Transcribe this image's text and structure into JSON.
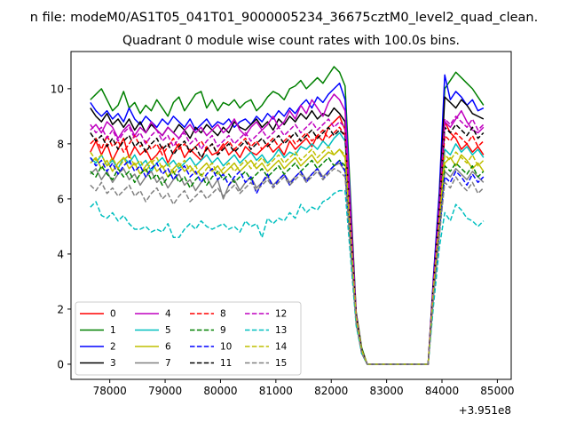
{
  "suptitle": "n file: modeM0/AS1T05_041T01_9000005234_36675cztM0_level2_quad_clean.",
  "chart_data": {
    "type": "line",
    "title": "Quadrant 0 module wise count rates with 100.0s bins.",
    "xlabel": "",
    "ylabel": "",
    "x_offset_label": "+3.951e8",
    "xlim": [
      77300,
      85250
    ],
    "ylim": [
      -0.55,
      11.35
    ],
    "x_ticks": [
      78000,
      79000,
      80000,
      81000,
      82000,
      83000,
      84000,
      85000
    ],
    "x_tick_labels": [
      "78000",
      "79000",
      "80000",
      "81000",
      "82000",
      "83000",
      "84000",
      "85000"
    ],
    "y_ticks": [
      0,
      2,
      4,
      6,
      8,
      10
    ],
    "y_tick_labels": [
      "0",
      "2",
      "4",
      "6",
      "8",
      "10"
    ],
    "grid": false,
    "legend": {
      "placement": "lower-left",
      "columns": 4
    },
    "segments": [
      {
        "x_start": 77650,
        "x_step": 100,
        "count": 47
      },
      {
        "x_start": 82450,
        "x_step": 100,
        "count": 14
      },
      {
        "x_start": 83850,
        "x_step": 100,
        "count": 10
      }
    ],
    "series": [
      {
        "name": "0",
        "color": "#ff0000",
        "dash": "solid",
        "values": [
          7.7,
          8.1,
          7.6,
          8.0,
          7.4,
          7.8,
          8.2,
          7.5,
          7.9,
          7.6,
          7.8,
          7.4,
          7.6,
          7.9,
          7.3,
          7.7,
          8.0,
          7.5,
          7.8,
          7.6,
          7.4,
          7.9,
          7.6,
          7.7,
          8.0,
          7.6,
          7.8,
          7.5,
          7.9,
          7.7,
          7.6,
          7.8,
          8.0,
          7.7,
          7.9,
          7.6,
          8.1,
          7.8,
          8.0,
          8.2,
          7.9,
          8.3,
          8.1,
          8.6,
          8.8,
          9.0,
          8.5,
          1.8,
          0.5,
          0,
          0,
          0,
          0,
          0,
          0,
          0,
          0,
          0,
          0,
          0,
          0,
          3.0,
          5.5,
          8.8,
          8.4,
          8.2,
          7.8,
          8.0,
          7.7,
          7.9,
          7.6
        ]
      },
      {
        "name": "1",
        "color": "#008000",
        "dash": "solid",
        "values": [
          9.6,
          9.8,
          10.0,
          9.6,
          9.2,
          9.4,
          9.9,
          9.3,
          9.5,
          9.1,
          9.4,
          9.2,
          9.6,
          9.3,
          9.0,
          9.5,
          9.7,
          9.2,
          9.5,
          9.8,
          9.9,
          9.3,
          9.6,
          9.2,
          9.5,
          9.4,
          9.6,
          9.3,
          9.5,
          9.6,
          9.2,
          9.4,
          9.7,
          9.9,
          9.8,
          9.6,
          10.0,
          10.1,
          10.3,
          10.0,
          10.2,
          10.4,
          10.2,
          10.5,
          10.8,
          10.6,
          10.1,
          1.9,
          0.6,
          0,
          0,
          0,
          0,
          0,
          0,
          0,
          0,
          0,
          0,
          0,
          0,
          3.2,
          6.0,
          10.0,
          10.3,
          10.6,
          10.4,
          10.2,
          10.0,
          9.7,
          9.4
        ]
      },
      {
        "name": "2",
        "color": "#0000ff",
        "dash": "solid",
        "values": [
          9.5,
          9.2,
          9.0,
          9.2,
          8.9,
          9.1,
          8.8,
          9.3,
          8.9,
          8.7,
          9.0,
          8.8,
          8.6,
          8.9,
          8.7,
          9.0,
          8.8,
          8.6,
          8.9,
          8.5,
          8.7,
          8.9,
          8.6,
          8.8,
          8.7,
          8.9,
          8.6,
          8.8,
          8.9,
          8.7,
          9.0,
          8.8,
          9.1,
          8.9,
          9.2,
          9.0,
          9.3,
          9.1,
          9.4,
          9.6,
          9.3,
          9.7,
          9.5,
          9.8,
          10.0,
          10.2,
          9.6,
          1.8,
          0.5,
          0,
          0,
          0,
          0,
          0,
          0,
          0,
          0,
          0,
          0,
          0,
          0,
          3.3,
          6.2,
          10.5,
          9.6,
          9.9,
          9.7,
          9.4,
          9.6,
          9.2,
          9.3
        ]
      },
      {
        "name": "3",
        "color": "#000000",
        "dash": "solid",
        "values": [
          9.3,
          9.0,
          8.8,
          9.1,
          8.7,
          8.9,
          8.6,
          8.9,
          8.5,
          8.8,
          8.4,
          8.7,
          8.5,
          8.3,
          8.6,
          8.4,
          8.7,
          8.5,
          8.2,
          8.6,
          8.4,
          8.7,
          8.5,
          8.3,
          8.6,
          8.4,
          8.8,
          8.6,
          8.5,
          8.7,
          8.9,
          8.6,
          8.8,
          8.5,
          8.9,
          8.7,
          9.0,
          8.8,
          9.1,
          8.9,
          9.2,
          8.9,
          9.1,
          9.0,
          9.3,
          9.1,
          8.8,
          1.7,
          0.5,
          0,
          0,
          0,
          0,
          0,
          0,
          0,
          0,
          0,
          0,
          0,
          0,
          3.1,
          5.8,
          9.7,
          9.5,
          9.3,
          9.6,
          9.4,
          9.1,
          9.0,
          8.9
        ]
      },
      {
        "name": "4",
        "color": "#bf00bf",
        "dash": "solid",
        "values": [
          8.5,
          8.7,
          8.4,
          8.8,
          8.6,
          8.2,
          8.5,
          8.7,
          8.3,
          8.6,
          8.4,
          8.8,
          8.5,
          8.3,
          8.6,
          8.4,
          8.2,
          8.5,
          8.7,
          8.4,
          8.6,
          8.3,
          8.5,
          8.7,
          8.4,
          8.6,
          8.9,
          8.5,
          8.3,
          8.6,
          8.8,
          8.5,
          8.7,
          9.0,
          8.6,
          8.8,
          9.2,
          8.9,
          9.4,
          9.1,
          9.6,
          9.3,
          9.0,
          9.5,
          9.8,
          9.6,
          9.2,
          1.8,
          0.5,
          0,
          0,
          0,
          0,
          0,
          0,
          0,
          0,
          0,
          0,
          0,
          0,
          3.0,
          5.6,
          8.8,
          8.6,
          8.9,
          9.2,
          8.8,
          8.5,
          8.4,
          8.6
        ]
      },
      {
        "name": "5",
        "color": "#00bfbf",
        "dash": "solid",
        "values": [
          7.5,
          7.3,
          7.6,
          7.2,
          7.4,
          7.1,
          7.5,
          7.3,
          7.6,
          7.2,
          7.4,
          7.0,
          7.3,
          7.5,
          7.2,
          7.4,
          7.1,
          7.3,
          7.5,
          7.2,
          7.4,
          7.6,
          7.3,
          7.5,
          7.2,
          7.4,
          7.6,
          7.3,
          7.5,
          7.7,
          7.4,
          7.6,
          7.3,
          7.5,
          7.8,
          7.5,
          7.7,
          7.6,
          7.9,
          7.8,
          8.0,
          7.8,
          8.1,
          7.9,
          8.2,
          8.4,
          8.1,
          1.7,
          0.5,
          0,
          0,
          0,
          0,
          0,
          0,
          0,
          0,
          0,
          0,
          0,
          0,
          2.8,
          5.3,
          7.8,
          7.6,
          8.0,
          7.7,
          7.9,
          7.6,
          7.8,
          7.5
        ]
      },
      {
        "name": "6",
        "color": "#bfbf00",
        "dash": "solid",
        "values": [
          7.3,
          7.5,
          7.1,
          7.4,
          7.0,
          7.3,
          7.5,
          7.1,
          7.3,
          6.9,
          7.2,
          7.4,
          7.0,
          7.2,
          6.8,
          7.1,
          7.3,
          7.0,
          7.2,
          6.9,
          7.1,
          7.3,
          7.0,
          7.2,
          6.9,
          7.1,
          7.3,
          7.0,
          7.2,
          7.4,
          7.1,
          7.3,
          7.0,
          7.2,
          7.4,
          7.1,
          7.3,
          7.5,
          7.2,
          7.4,
          7.6,
          7.3,
          7.5,
          7.7,
          7.6,
          7.8,
          7.5,
          1.6,
          0.5,
          0,
          0,
          0,
          0,
          0,
          0,
          0,
          0,
          0,
          0,
          0,
          0,
          2.7,
          5.0,
          7.3,
          7.5,
          7.2,
          7.6,
          7.4,
          7.1,
          7.3,
          7.0
        ]
      },
      {
        "name": "7",
        "color": "#808080",
        "dash": "solid",
        "values": [
          6.9,
          7.1,
          6.7,
          7.0,
          6.6,
          6.9,
          7.1,
          6.7,
          6.9,
          6.5,
          6.8,
          7.0,
          6.6,
          6.8,
          6.4,
          6.7,
          6.9,
          6.5,
          6.7,
          6.3,
          6.6,
          6.8,
          6.4,
          6.7,
          6.0,
          6.5,
          6.7,
          6.3,
          6.6,
          6.8,
          6.4,
          6.6,
          6.8,
          6.5,
          6.7,
          6.9,
          6.6,
          6.8,
          7.0,
          6.7,
          6.9,
          7.1,
          6.8,
          7.0,
          7.2,
          7.3,
          7.0,
          1.5,
          0.4,
          0,
          0,
          0,
          0,
          0,
          0,
          0,
          0,
          0,
          0,
          0,
          0,
          2.6,
          4.8,
          7.0,
          6.8,
          7.1,
          6.9,
          6.7,
          7.0,
          6.8,
          6.6
        ]
      },
      {
        "name": "8",
        "color": "#ff0000",
        "dash": "dashed",
        "values": [
          8.0,
          8.2,
          7.8,
          8.3,
          7.9,
          8.1,
          7.7,
          8.0,
          8.3,
          7.9,
          8.1,
          7.8,
          8.0,
          7.6,
          7.9,
          8.2,
          7.8,
          8.0,
          7.7,
          7.9,
          8.1,
          7.8,
          8.0,
          7.6,
          7.9,
          8.1,
          7.8,
          8.0,
          8.2,
          7.9,
          8.1,
          7.8,
          8.0,
          8.2,
          7.9,
          8.1,
          8.3,
          8.0,
          8.2,
          8.4,
          8.1,
          8.3,
          8.5,
          8.2,
          8.4,
          8.6,
          8.3,
          1.8,
          0.5,
          0,
          0,
          0,
          0,
          0,
          0,
          0,
          0,
          0,
          0,
          0,
          0,
          3.0,
          5.4,
          8.3,
          8.1,
          8.4,
          8.2,
          8.0,
          8.3,
          7.9,
          8.1
        ]
      },
      {
        "name": "9",
        "color": "#008000",
        "dash": "dashed",
        "values": [
          7.0,
          6.8,
          7.2,
          6.9,
          6.7,
          7.1,
          6.8,
          7.0,
          6.6,
          6.9,
          7.1,
          6.7,
          6.9,
          6.5,
          6.8,
          7.0,
          6.6,
          6.8,
          6.4,
          6.7,
          6.9,
          6.5,
          6.8,
          7.0,
          6.7,
          6.9,
          6.6,
          6.8,
          7.0,
          6.7,
          6.9,
          7.1,
          6.8,
          7.0,
          7.2,
          6.9,
          7.1,
          7.3,
          7.0,
          7.2,
          7.4,
          7.1,
          7.3,
          7.5,
          7.2,
          7.4,
          7.2,
          1.6,
          0.4,
          0,
          0,
          0,
          0,
          0,
          0,
          0,
          0,
          0,
          0,
          0,
          0,
          2.6,
          4.9,
          7.2,
          7.0,
          7.3,
          7.1,
          6.9,
          7.2,
          6.8,
          7.0
        ]
      },
      {
        "name": "10",
        "color": "#0000ff",
        "dash": "dashed",
        "values": [
          7.5,
          7.2,
          7.4,
          7.0,
          7.3,
          6.9,
          7.2,
          7.4,
          7.0,
          7.2,
          6.8,
          7.1,
          7.3,
          6.9,
          7.1,
          6.7,
          7.0,
          7.2,
          6.8,
          7.0,
          6.6,
          6.9,
          7.1,
          6.7,
          6.9,
          6.5,
          6.8,
          7.0,
          6.6,
          6.8,
          6.2,
          6.6,
          6.9,
          6.4,
          6.7,
          6.9,
          6.5,
          6.8,
          7.0,
          6.6,
          6.9,
          7.1,
          6.7,
          7.0,
          7.2,
          7.4,
          7.0,
          1.6,
          0.4,
          0,
          0,
          0,
          0,
          0,
          0,
          0,
          0,
          0,
          0,
          0,
          0,
          2.6,
          4.7,
          6.8,
          6.6,
          7.0,
          6.8,
          6.5,
          6.9,
          6.6,
          6.8
        ]
      },
      {
        "name": "11",
        "color": "#000000",
        "dash": "dashed",
        "values": [
          8.4,
          8.1,
          8.3,
          7.9,
          8.2,
          7.8,
          8.1,
          8.3,
          7.9,
          8.1,
          7.7,
          8.0,
          8.2,
          7.8,
          8.0,
          7.6,
          7.9,
          8.1,
          7.7,
          7.9,
          7.5,
          7.8,
          8.0,
          7.6,
          7.8,
          8.0,
          7.7,
          7.9,
          8.1,
          7.8,
          8.0,
          8.2,
          7.9,
          8.1,
          8.3,
          8.0,
          8.2,
          8.4,
          8.1,
          8.3,
          8.5,
          8.2,
          8.4,
          8.6,
          8.3,
          8.5,
          8.3,
          1.8,
          0.5,
          0,
          0,
          0,
          0,
          0,
          0,
          0,
          0,
          0,
          0,
          0,
          0,
          3.0,
          5.6,
          8.6,
          8.4,
          8.7,
          8.5,
          8.3,
          8.6,
          8.2,
          8.4
        ]
      },
      {
        "name": "12",
        "color": "#bf00bf",
        "dash": "dashed",
        "values": [
          8.7,
          8.4,
          8.6,
          8.2,
          8.5,
          8.1,
          8.4,
          8.6,
          8.2,
          8.4,
          8.0,
          8.3,
          8.5,
          8.1,
          8.3,
          7.9,
          8.2,
          8.4,
          8.0,
          8.2,
          7.8,
          8.1,
          8.3,
          7.9,
          8.1,
          8.3,
          8.0,
          8.2,
          8.4,
          8.1,
          8.3,
          8.5,
          8.2,
          8.4,
          8.6,
          8.3,
          8.5,
          8.7,
          8.4,
          8.6,
          8.8,
          8.5,
          8.7,
          8.9,
          8.6,
          8.8,
          8.6,
          1.8,
          0.5,
          0,
          0,
          0,
          0,
          0,
          0,
          0,
          0,
          0,
          0,
          0,
          0,
          3.1,
          5.7,
          8.9,
          8.7,
          9.0,
          8.8,
          8.6,
          8.9,
          8.5,
          8.7
        ]
      },
      {
        "name": "13",
        "color": "#00bfbf",
        "dash": "dashed",
        "values": [
          5.7,
          5.9,
          5.4,
          5.3,
          5.5,
          5.2,
          5.4,
          5.1,
          4.9,
          4.9,
          5.0,
          4.8,
          4.9,
          4.8,
          5.1,
          4.6,
          4.6,
          4.9,
          5.1,
          4.9,
          5.2,
          5.0,
          4.9,
          5.0,
          5.1,
          4.9,
          5.0,
          4.8,
          5.2,
          5.0,
          5.1,
          4.6,
          5.3,
          5.1,
          5.3,
          5.2,
          5.5,
          5.3,
          5.8,
          5.5,
          5.7,
          5.6,
          5.9,
          6.0,
          6.2,
          6.3,
          6.3,
          1.4,
          0.4,
          0,
          0,
          0,
          0,
          0,
          0,
          0,
          0,
          0,
          0,
          0,
          0,
          2.2,
          4.2,
          5.5,
          5.2,
          5.8,
          5.6,
          5.3,
          5.2,
          5.0,
          5.2
        ]
      },
      {
        "name": "14",
        "color": "#bfbf00",
        "dash": "dashed",
        "values": [
          7.7,
          7.4,
          7.6,
          7.2,
          7.5,
          7.1,
          7.4,
          7.6,
          7.2,
          7.4,
          7.0,
          7.3,
          7.5,
          7.1,
          7.3,
          6.9,
          7.2,
          7.4,
          7.0,
          7.2,
          6.8,
          7.1,
          7.3,
          6.9,
          7.1,
          7.3,
          7.0,
          7.2,
          7.4,
          7.1,
          7.3,
          7.5,
          7.2,
          7.4,
          7.6,
          7.3,
          7.5,
          7.7,
          7.4,
          7.6,
          7.8,
          7.5,
          7.7,
          7.9,
          7.6,
          7.8,
          7.6,
          1.7,
          0.5,
          0,
          0,
          0,
          0,
          0,
          0,
          0,
          0,
          0,
          0,
          0,
          0,
          2.8,
          5.1,
          7.6,
          7.4,
          7.7,
          7.5,
          7.3,
          7.6,
          7.2,
          7.4
        ]
      },
      {
        "name": "15",
        "color": "#808080",
        "dash": "dashed",
        "values": [
          6.5,
          6.3,
          6.6,
          6.2,
          6.4,
          6.1,
          6.3,
          6.5,
          6.1,
          6.3,
          5.9,
          6.2,
          6.4,
          6.0,
          6.2,
          5.8,
          6.1,
          6.3,
          5.9,
          6.1,
          6.3,
          6.0,
          6.2,
          6.4,
          6.1,
          6.3,
          6.5,
          6.2,
          6.4,
          6.6,
          6.3,
          6.5,
          6.7,
          6.4,
          6.6,
          6.8,
          6.5,
          6.7,
          6.9,
          6.6,
          6.8,
          7.0,
          6.7,
          6.9,
          7.1,
          7.0,
          6.8,
          1.5,
          0.4,
          0,
          0,
          0,
          0,
          0,
          0,
          0,
          0,
          0,
          0,
          0,
          0,
          2.5,
          4.6,
          6.6,
          6.4,
          6.8,
          6.5,
          6.3,
          6.6,
          6.2,
          6.4
        ]
      }
    ]
  }
}
